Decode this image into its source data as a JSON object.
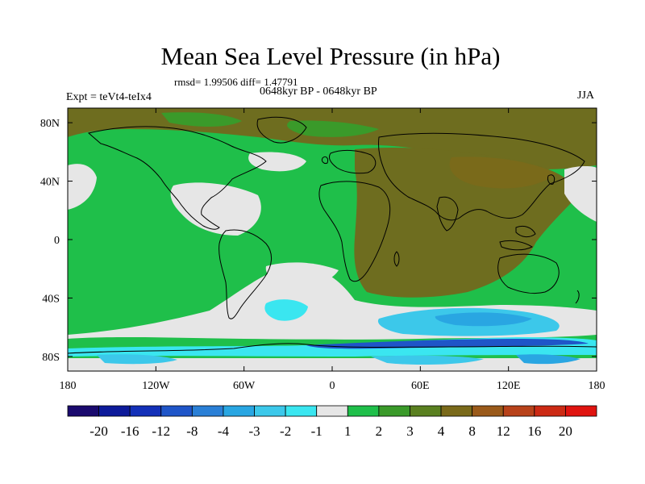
{
  "title": "Mean Sea Level Pressure (in hPa)",
  "stats": "rmsd= 1.99506 diff= 1.47791",
  "period": "0648kyr BP - 0648kyr BP",
  "experiment": "Expt = teVt4-teIx4",
  "season": "JJA",
  "map": {
    "projection": "cylindrical equidistant",
    "lon_range": [
      -180,
      180
    ],
    "lat_range": [
      -90,
      90
    ],
    "lon_ticks": [
      {
        "value": -180,
        "label": "180"
      },
      {
        "value": -120,
        "label": "120W"
      },
      {
        "value": -60,
        "label": "60W"
      },
      {
        "value": 0,
        "label": "0"
      },
      {
        "value": 60,
        "label": "60E"
      },
      {
        "value": 120,
        "label": "120E"
      },
      {
        "value": 180,
        "label": "180"
      }
    ],
    "lat_ticks": [
      {
        "value": 80,
        "label": "80N"
      },
      {
        "value": 40,
        "label": "40N"
      },
      {
        "value": 0,
        "label": "0"
      },
      {
        "value": -40,
        "label": "40S"
      },
      {
        "value": -80,
        "label": "80S"
      }
    ]
  },
  "colorbar": {
    "labels": [
      "-20",
      "-16",
      "-12",
      "-8",
      "-4",
      "-3",
      "-2",
      "-1",
      "1",
      "2",
      "3",
      "4",
      "8",
      "12",
      "16",
      "20"
    ],
    "colors": [
      "#1a0a6e",
      "#0d1a9a",
      "#1330b8",
      "#1f55c8",
      "#2a7fd6",
      "#29a6e2",
      "#3cc8ea",
      "#3ae6f0",
      "#e6e6e6",
      "#1fbf4a",
      "#3a9a2a",
      "#5a8020",
      "#7a6a1a",
      "#9a5a1a",
      "#b8421a",
      "#cc2a14",
      "#e01410"
    ]
  },
  "colors": {
    "green_light": "#1fbf4a",
    "green_mid": "#3a9a2a",
    "olive": "#5a8020",
    "brown_olive": "#6e6d1f",
    "brown": "#7a6a1a",
    "gray": "#e6e6e6",
    "cyan": "#3ae6f0",
    "light_blue": "#3cc8ea",
    "blue": "#29a6e2",
    "deep_blue": "#1f55c8"
  }
}
